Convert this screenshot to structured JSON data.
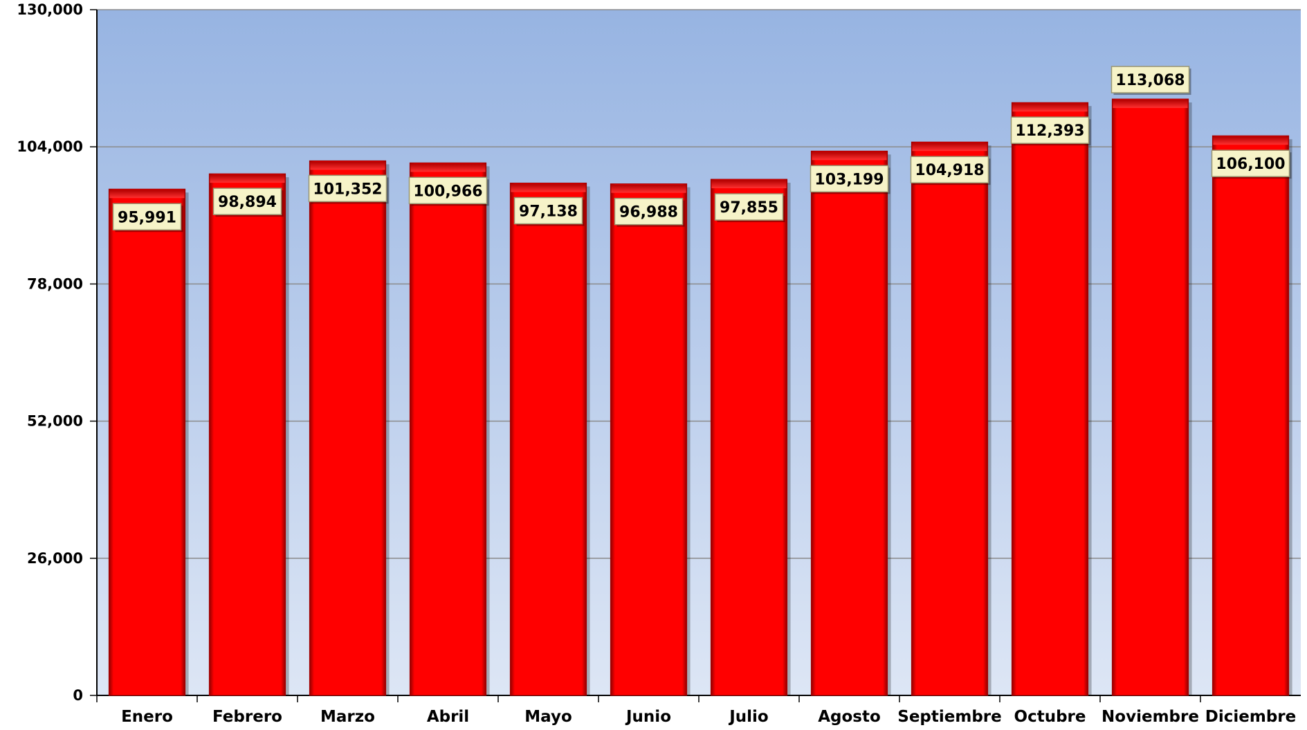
{
  "colors": {
    "plot_top": "#97b4e2",
    "plot_bottom": "#dde6f5",
    "bar": "#ff0000",
    "bar_edge": "#a30000",
    "label_box": "#f6f3c8",
    "gridline": "#8a8a8a"
  },
  "chart_data": {
    "type": "bar",
    "title": "",
    "xlabel": "",
    "ylabel": "",
    "ylim": [
      0,
      130000
    ],
    "y_ticks": [
      0,
      26000,
      52000,
      78000,
      104000,
      130000
    ],
    "y_tick_labels": [
      "0",
      "26,000",
      "52,000",
      "78,000",
      "104,000",
      "130,000"
    ],
    "grid": true,
    "legend": "none",
    "categories": [
      "Enero",
      "Febrero",
      "Marzo",
      "Abril",
      "Mayo",
      "Junio",
      "Julio",
      "Agosto",
      "Septiembre",
      "Octubre",
      "Noviembre",
      "Diciembre"
    ],
    "values": [
      95991,
      98894,
      101352,
      100966,
      97138,
      96988,
      97855,
      103199,
      104918,
      112393,
      113068,
      106100
    ],
    "value_labels": [
      "95,991",
      "98,894",
      "101,352",
      "100,966",
      "97,138",
      "96,988",
      "97,855",
      "103,199",
      "104,918",
      "112,393",
      "113,068",
      "106,100"
    ]
  }
}
